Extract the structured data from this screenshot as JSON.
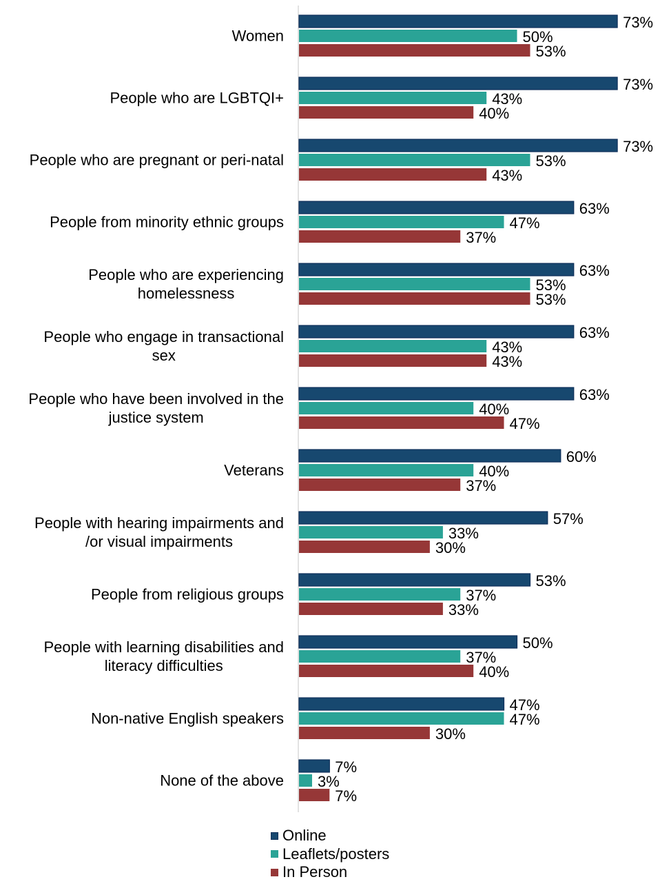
{
  "chart_data": {
    "type": "bar",
    "orientation": "horizontal",
    "categories": [
      "Women",
      "People who are LGBTQI+",
      "People who are pregnant or peri-natal",
      "People from minority ethnic groups",
      "People who are experiencing\nhomelessness",
      "People who engage in transactional\nsex",
      "People who have been involved in the\njustice system",
      "Veterans",
      "People with hearing impairments and\n/or visual impairments",
      "People from religious groups",
      "People with learning disabilities and\nliteracy difficulties",
      "Non-native English speakers",
      "None of the above"
    ],
    "series": [
      {
        "name": "Online",
        "color": "#17486F",
        "values": [
          73,
          73,
          73,
          63,
          63,
          63,
          63,
          60,
          57,
          53,
          50,
          47,
          7
        ]
      },
      {
        "name": "Leaflets/posters",
        "color": "#2AA396",
        "values": [
          50,
          43,
          53,
          47,
          53,
          43,
          40,
          40,
          33,
          37,
          37,
          47,
          3
        ]
      },
      {
        "name": "In Person",
        "color": "#963737",
        "values": [
          53,
          40,
          43,
          37,
          53,
          43,
          47,
          37,
          30,
          33,
          40,
          30,
          7
        ]
      }
    ],
    "value_suffix": "%",
    "grid": false,
    "legend_position": "bottom"
  }
}
